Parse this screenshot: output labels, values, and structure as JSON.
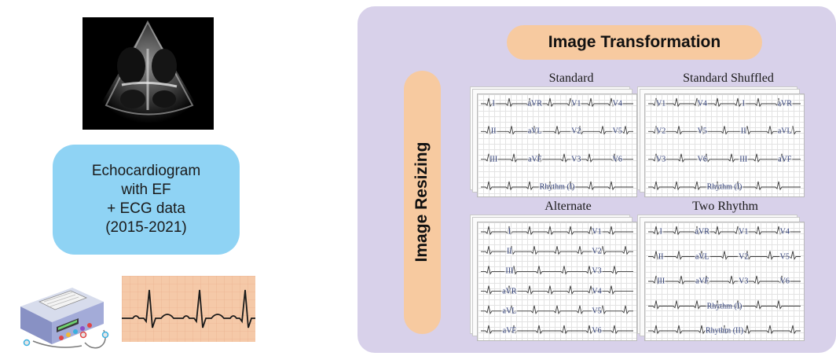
{
  "left": {
    "echo_box_lines": [
      "Echocardiogram",
      "with EF",
      "+ ECG data",
      "(2015-2021)"
    ]
  },
  "panel": {
    "title": "Image Transformation",
    "side_label": "Image Resizing",
    "layouts": [
      {
        "title": "Standard",
        "rows": [
          [
            "I",
            "aVR",
            "V1",
            "V4"
          ],
          [
            "II",
            "aVL",
            "V2",
            "V5"
          ],
          [
            "III",
            "aVF",
            "V3",
            "V6"
          ],
          [
            "Rhythm (I)"
          ]
        ]
      },
      {
        "title": "Standard Shuffled",
        "rows": [
          [
            "V1",
            "V4",
            "I",
            "aVR"
          ],
          [
            "V2",
            "V5",
            "II",
            "aVL"
          ],
          [
            "V3",
            "V6",
            "III",
            "aVF"
          ],
          [
            "Rhythm (I)"
          ]
        ]
      },
      {
        "title": "Alternate",
        "rows": [
          [
            "I",
            "V1"
          ],
          [
            "II",
            "V2"
          ],
          [
            "III",
            "V3"
          ],
          [
            "aVR",
            "V4"
          ],
          [
            "aVL",
            "V5"
          ],
          [
            "aVF",
            "V6"
          ]
        ]
      },
      {
        "title": "Two Rhythm",
        "rows": [
          [
            "I",
            "aVR",
            "V1",
            "V4"
          ],
          [
            "II",
            "aVL",
            "V2",
            "V5"
          ],
          [
            "III",
            "aVF",
            "V3",
            "V6"
          ],
          [
            "Rhythm (I)"
          ],
          [
            "Rhythm (II)"
          ]
        ]
      }
    ]
  },
  "colors": {
    "echo_box": "#8fd3f4",
    "panel_bg": "#d8d1ea",
    "pill": "#f7caa0",
    "lead_text": "#2f3e78",
    "ecg_strip_bg": "#f5c9a8"
  },
  "icons": [
    "echocardiogram-image",
    "ecg-machine-icon",
    "ecg-waveform-icon"
  ]
}
